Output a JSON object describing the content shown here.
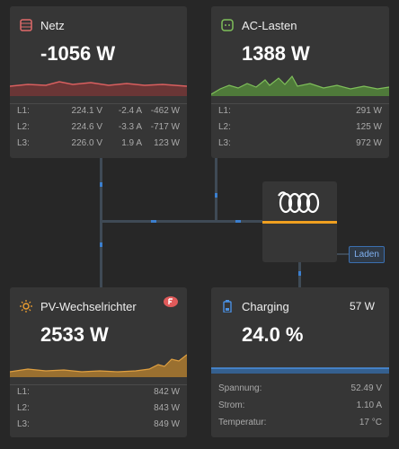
{
  "netz": {
    "title": "Netz",
    "value": "-1056 W",
    "rows": [
      [
        "L1:",
        "224.1 V",
        "-2.4 A",
        "-462 W"
      ],
      [
        "L2:",
        "224.6 V",
        "-3.3 A",
        "-717 W"
      ],
      [
        "L3:",
        "226.0 V",
        "1.9 A",
        "123 W"
      ]
    ]
  },
  "ac_lasten": {
    "title": "AC-Lasten",
    "value": "1388 W",
    "rows": [
      [
        "L1:",
        "291 W"
      ],
      [
        "L2:",
        "125 W"
      ],
      [
        "L3:",
        "972 W"
      ]
    ]
  },
  "pv": {
    "title": "PV-Wechselrichter",
    "value": "2533 W",
    "rows": [
      [
        "L1:",
        "842 W"
      ],
      [
        "L2:",
        "843 W"
      ],
      [
        "L3:",
        "849 W"
      ]
    ]
  },
  "charging": {
    "title": "Charging",
    "power": "57 W",
    "value": "24.0 %",
    "rows": [
      [
        "Spannung:",
        "52.49 V"
      ],
      [
        "Strom:",
        "1.10 A"
      ],
      [
        "Temperatur:",
        "17 °C"
      ]
    ]
  },
  "inverter": {
    "button": "Laden"
  }
}
